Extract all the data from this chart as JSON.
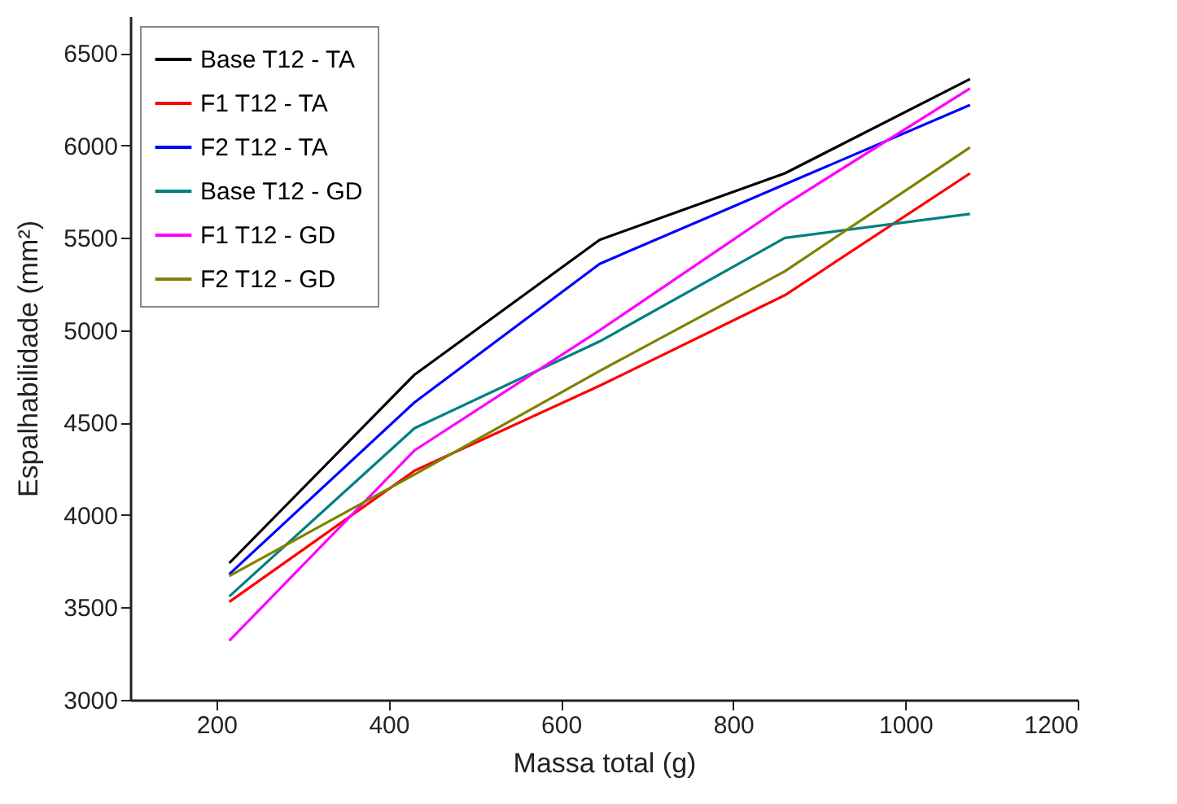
{
  "chart_data": {
    "type": "line",
    "xlabel": "Massa total (g)",
    "ylabel": "Espalhabilidade (mm²)",
    "x": [
      215,
      430,
      645,
      860,
      1075
    ],
    "xlim": [
      100,
      1200
    ],
    "xticks": [
      200,
      400,
      600,
      800,
      1000,
      1200
    ],
    "ylim": [
      3000,
      6700
    ],
    "yticks": [
      3000,
      3500,
      4000,
      4500,
      5000,
      5500,
      6000,
      6500
    ],
    "grid": false,
    "legend": "top left",
    "marker": "none",
    "line_style": "solid",
    "series": [
      {
        "name": "Base T12 - TA",
        "color": "#000000",
        "values": [
          3740,
          4760,
          5490,
          5850,
          6360
        ]
      },
      {
        "name": "F1 T12 - TA",
        "color": "#ff0000",
        "values": [
          3530,
          4240,
          4700,
          5190,
          5850
        ]
      },
      {
        "name": "F2 T12 - TA",
        "color": "#0000ff",
        "values": [
          3680,
          4610,
          5360,
          5790,
          6220
        ]
      },
      {
        "name": "Base T12 - GD",
        "color": "#008080",
        "values": [
          3560,
          4470,
          4940,
          5500,
          5630
        ]
      },
      {
        "name": "F1 T12 - GD",
        "color": "#ff00ff",
        "values": [
          3320,
          4350,
          5000,
          5680,
          6310
        ]
      },
      {
        "name": "F2 T12 - GD",
        "color": "#808000",
        "values": [
          3670,
          4220,
          4780,
          5320,
          5990
        ]
      }
    ]
  }
}
